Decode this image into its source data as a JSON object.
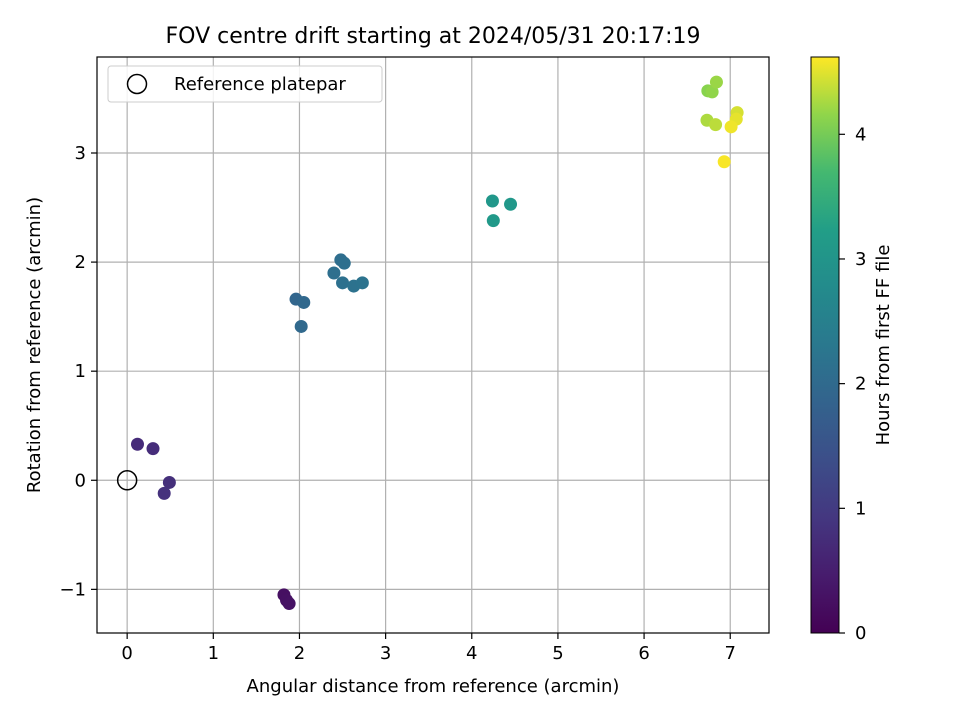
{
  "chart_data": {
    "type": "scatter",
    "title": "FOV centre drift starting at 2024/05/31 20:17:19",
    "xlabel": "Angular distance from reference (arcmin)",
    "ylabel": "Rotation from reference (arcmin)",
    "xlim": [
      -0.35,
      7.45
    ],
    "ylim": [
      -1.4,
      3.88
    ],
    "xticks": [
      0,
      1,
      2,
      3,
      4,
      5,
      6,
      7
    ],
    "xtick_labels": [
      "0",
      "1",
      "2",
      "3",
      "4",
      "5",
      "6",
      "7"
    ],
    "yticks": [
      -1,
      0,
      1,
      2,
      3
    ],
    "ytick_labels": [
      "−1",
      "0",
      "1",
      "2",
      "3"
    ],
    "grid": true,
    "legend": {
      "position": "top-left",
      "entries": [
        "Reference platepar"
      ]
    },
    "reference_point": {
      "x": 0,
      "y": 0,
      "label": "Reference platepar"
    },
    "colorbar": {
      "label": "Hours from first FF file",
      "colormap": "viridis",
      "range": [
        0,
        4.62
      ],
      "ticks": [
        0,
        1,
        2,
        3,
        4
      ],
      "tick_labels": [
        "0",
        "1",
        "2",
        "3",
        "4"
      ]
    },
    "points": [
      {
        "x": 1.82,
        "y": -1.05,
        "t": 0.25
      },
      {
        "x": 1.85,
        "y": -1.1,
        "t": 0.27
      },
      {
        "x": 1.88,
        "y": -1.13,
        "t": 0.3
      },
      {
        "x": 0.12,
        "y": 0.33,
        "t": 0.72
      },
      {
        "x": 0.3,
        "y": 0.29,
        "t": 0.76
      },
      {
        "x": 0.49,
        "y": -0.02,
        "t": 0.8
      },
      {
        "x": 0.43,
        "y": -0.12,
        "t": 0.84
      },
      {
        "x": 1.96,
        "y": 1.66,
        "t": 1.92
      },
      {
        "x": 2.05,
        "y": 1.63,
        "t": 1.95
      },
      {
        "x": 2.02,
        "y": 1.41,
        "t": 1.98
      },
      {
        "x": 2.48,
        "y": 2.02,
        "t": 2.08
      },
      {
        "x": 2.52,
        "y": 1.99,
        "t": 2.1
      },
      {
        "x": 2.4,
        "y": 1.9,
        "t": 2.12
      },
      {
        "x": 2.5,
        "y": 1.81,
        "t": 2.14
      },
      {
        "x": 2.63,
        "y": 1.78,
        "t": 2.17
      },
      {
        "x": 2.73,
        "y": 1.81,
        "t": 2.19
      },
      {
        "x": 4.24,
        "y": 2.56,
        "t": 3.05
      },
      {
        "x": 4.45,
        "y": 2.53,
        "t": 3.08
      },
      {
        "x": 4.25,
        "y": 2.38,
        "t": 3.1
      },
      {
        "x": 6.74,
        "y": 3.57,
        "t": 4.12
      },
      {
        "x": 6.79,
        "y": 3.56,
        "t": 4.16
      },
      {
        "x": 6.84,
        "y": 3.65,
        "t": 4.2
      },
      {
        "x": 6.73,
        "y": 3.3,
        "t": 4.28
      },
      {
        "x": 6.83,
        "y": 3.26,
        "t": 4.34
      },
      {
        "x": 7.08,
        "y": 3.37,
        "t": 4.45
      },
      {
        "x": 7.07,
        "y": 3.31,
        "t": 4.52
      },
      {
        "x": 7.01,
        "y": 3.24,
        "t": 4.56
      },
      {
        "x": 6.93,
        "y": 2.92,
        "t": 4.6
      }
    ]
  }
}
